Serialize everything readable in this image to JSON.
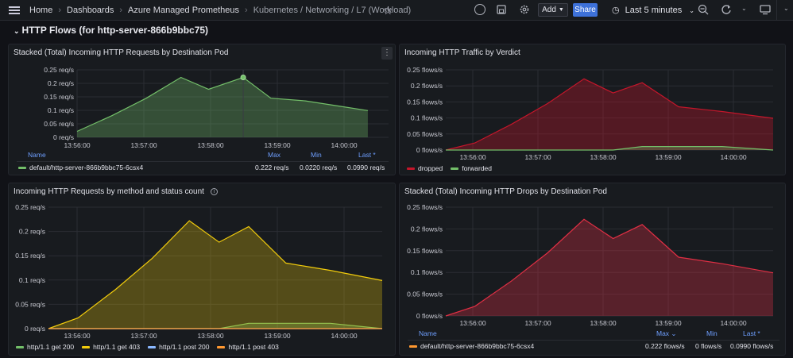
{
  "topbar": {
    "breadcrumbs": [
      "Home",
      "Dashboards",
      "Azure Managed Prometheus",
      "Kubernetes / Networking / L7 (Workload)"
    ],
    "add_label": "Add",
    "share_label": "Share",
    "time_range": "Last 5 minutes"
  },
  "row": {
    "title": "HTTP Flows (for http-server-866b9bbc75)"
  },
  "colors": {
    "green": "#73bf69",
    "red": "#c4162a",
    "yellow": "#f2cc0c",
    "blue": "#8ab8ff",
    "orange": "#ff9830",
    "pink": "#e02f44"
  },
  "panels": {
    "p1": {
      "title": "Stacked (Total) Incoming HTTP Requests by Destination Pod",
      "legend": {
        "headers": [
          "Name",
          "Max",
          "Min",
          "Last *"
        ],
        "rows": [
          {
            "name": "default/http-server-866b9bbc75-6csx4",
            "max": "0.222 req/s",
            "min": "0.0220 req/s",
            "last": "0.0990 req/s"
          }
        ]
      }
    },
    "p2": {
      "title": "Incoming HTTP Traffic by Verdict",
      "legend": [
        "dropped",
        "forwarded"
      ]
    },
    "p3": {
      "title": "Incoming HTTP Requests by method and status count",
      "legend": [
        "http/1.1 get 200",
        "http/1.1 get 403",
        "http/1.1 post 200",
        "http/1.1 post 403"
      ]
    },
    "p4": {
      "title": "Stacked (Total) Incoming HTTP Drops by Destination Pod",
      "legend": {
        "headers": [
          "Name",
          "Max",
          "Min",
          "Last *"
        ],
        "rows": [
          {
            "name": "default/http-server-866b9bbc75-6csx4",
            "max": "0.222 flows/s",
            "min": "0 flows/s",
            "last": "0.0990 flows/s"
          }
        ]
      }
    }
  },
  "chart_data": [
    {
      "type": "area",
      "title": "Stacked (Total) Incoming HTTP Requests by Destination Pod",
      "x_ticks": [
        "13:56:00",
        "13:57:00",
        "13:58:00",
        "13:59:00",
        "14:00:00"
      ],
      "y_ticks": [
        "0 req/s",
        "0.05 req/s",
        "0.1 req/s",
        "0.15 req/s",
        "0.2 req/s",
        "0.25 req/s"
      ],
      "ylim": [
        0,
        0.25
      ],
      "x": [
        0,
        0.5,
        1,
        1.5,
        1.9,
        2.4,
        2.8,
        3.3,
        3.8,
        4.2
      ],
      "series": [
        {
          "name": "default/http-server-866b9bbc75-6csx4",
          "color": "#73bf69",
          "values": [
            0.022,
            0.08,
            0.145,
            0.222,
            0.178,
            0.222,
            0.145,
            0.135,
            0.115,
            0.099
          ]
        }
      ]
    },
    {
      "type": "area",
      "title": "Incoming HTTP Traffic by Verdict",
      "x_ticks": [
        "13:56:00",
        "13:57:00",
        "13:58:00",
        "13:59:00",
        "14:00:00"
      ],
      "y_ticks": [
        "0 flows/s",
        "0.05 flows/s",
        "0.1 flows/s",
        "0.15 flows/s",
        "0.2 flows/s",
        "0.25 flows/s"
      ],
      "ylim": [
        0,
        0.25
      ],
      "x": [
        0,
        0.4,
        0.9,
        1.4,
        1.9,
        2.3,
        2.7,
        3.2,
        3.8,
        4.5
      ],
      "series": [
        {
          "name": "dropped",
          "color": "#c4162a",
          "values": [
            0,
            0.022,
            0.08,
            0.145,
            0.222,
            0.178,
            0.21,
            0.135,
            0.12,
            0.099
          ]
        },
        {
          "name": "forwarded",
          "color": "#73bf69",
          "values": [
            0,
            0,
            0,
            0,
            0,
            0,
            0.011,
            0.011,
            0.011,
            0
          ]
        }
      ]
    },
    {
      "type": "area",
      "title": "Incoming HTTP Requests by method and status count",
      "x_ticks": [
        "13:56:00",
        "13:57:00",
        "13:58:00",
        "13:59:00",
        "14:00:00"
      ],
      "y_ticks": [
        "0 req/s",
        "0.05 req/s",
        "0.1 req/s",
        "0.15 req/s",
        "0.2 req/s",
        "0.25 req/s"
      ],
      "ylim": [
        0,
        0.25
      ],
      "x": [
        0,
        0.4,
        0.9,
        1.4,
        1.9,
        2.3,
        2.7,
        3.2,
        3.8,
        4.5
      ],
      "series": [
        {
          "name": "http/1.1 get 200",
          "color": "#73bf69",
          "values": [
            0,
            0,
            0,
            0,
            0,
            0,
            0.011,
            0.011,
            0.011,
            0
          ]
        },
        {
          "name": "http/1.1 get 403",
          "color": "#f2cc0c",
          "values": [
            0,
            0.022,
            0.08,
            0.145,
            0.222,
            0.178,
            0.21,
            0.135,
            0.12,
            0.099
          ]
        },
        {
          "name": "http/1.1 post 200",
          "color": "#8ab8ff",
          "values": [
            0,
            0,
            0,
            0,
            0,
            0,
            0,
            0,
            0,
            0
          ]
        },
        {
          "name": "http/1.1 post 403",
          "color": "#ff9830",
          "values": [
            0,
            0,
            0,
            0,
            0,
            0,
            0,
            0,
            0,
            0
          ]
        }
      ]
    },
    {
      "type": "area",
      "title": "Stacked (Total) Incoming HTTP Drops by Destination Pod",
      "x_ticks": [
        "13:56:00",
        "13:57:00",
        "13:58:00",
        "13:59:00",
        "14:00:00"
      ],
      "y_ticks": [
        "0 flows/s",
        "0.05 flows/s",
        "0.1 flows/s",
        "0.15 flows/s",
        "0.2 flows/s",
        "0.25 flows/s"
      ],
      "ylim": [
        0,
        0.25
      ],
      "x": [
        0,
        0.4,
        0.9,
        1.4,
        1.9,
        2.3,
        2.7,
        3.2,
        3.8,
        4.5
      ],
      "series": [
        {
          "name": "default/http-server-866b9bbc75-6csx4",
          "color": "#e02f44",
          "values": [
            0,
            0.022,
            0.08,
            0.145,
            0.222,
            0.178,
            0.21,
            0.135,
            0.12,
            0.099
          ]
        }
      ]
    }
  ]
}
